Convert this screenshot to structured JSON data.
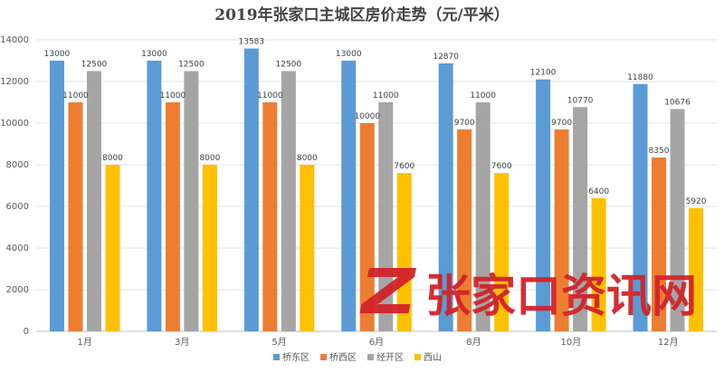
{
  "chart_data": {
    "type": "bar",
    "title": "2019年张家口主城区房价走势（元/平米）",
    "xlabel": "",
    "ylabel": "",
    "categories": [
      "1月",
      "3月",
      "5月",
      "6月",
      "8月",
      "10月",
      "12月"
    ],
    "series": [
      {
        "name": "桥东区",
        "color": "#5b9bd5",
        "values": [
          13000,
          13000,
          13583,
          13000,
          12870,
          12100,
          11880
        ]
      },
      {
        "name": "桥西区",
        "color": "#ed7d31",
        "values": [
          11000,
          11000,
          11000,
          10000,
          9700,
          9700,
          8350
        ]
      },
      {
        "name": "经开区",
        "color": "#a5a5a5",
        "values": [
          12500,
          12500,
          12500,
          11000,
          11000,
          10770,
          10676
        ]
      },
      {
        "name": "西山",
        "color": "#ffc000",
        "values": [
          8000,
          8000,
          8000,
          7600,
          7600,
          6400,
          5920
        ]
      }
    ],
    "ylim": [
      0,
      14000
    ],
    "yticks": [
      0,
      2000,
      4000,
      6000,
      8000,
      10000,
      12000,
      14000
    ],
    "grid": true,
    "legend_position": "bottom"
  },
  "watermark": {
    "text": "张家口资讯网",
    "logo_letter": "Z",
    "color": "#d2232a"
  }
}
